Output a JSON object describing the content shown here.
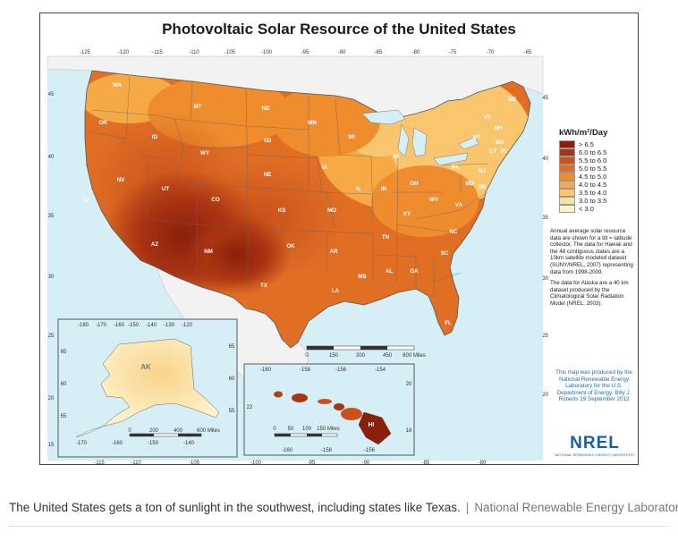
{
  "title": "Photovoltaic Solar Resource of the United States",
  "legend": {
    "title": "kWh/m²/Day",
    "items": [
      {
        "label": "> 6.5",
        "color": "#8a1f0c"
      },
      {
        "label": "6.0 to 6.5",
        "color": "#a93412"
      },
      {
        "label": "5.5 to 6.0",
        "color": "#c9511c"
      },
      {
        "label": "5.0 to 5.5",
        "color": "#e06f24"
      },
      {
        "label": "4.5 to 5.0",
        "color": "#ee8c2e"
      },
      {
        "label": "4.0 to 4.5",
        "color": "#f6aa45"
      },
      {
        "label": "3.5 to 4.0",
        "color": "#f9c66e"
      },
      {
        "label": "3.0 to 3.5",
        "color": "#fbe09e"
      },
      {
        "label": "< 3.0",
        "color": "#fdf2cc"
      }
    ]
  },
  "note1": "Annual average solar resource data are shown for a tilt = latitude collector. The data for Hawaii and the 48 contiguous states are a 10km satellite modeled dataset (SUNY/NREL, 2007) representing data from 1998-2009.",
  "note2": "The data for Alaska are a 40 km dataset produced by the Climatological Solar Radiation Model (NREL, 2003).",
  "credit": "This map was produced by the National Renewable Energy Laboratory for the U.S. Department of Energy. Billy J. Roberts 19 September 2012",
  "logo": "NREL",
  "logo_sub": "NATIONAL RENEWABLE ENERGY LABORATORY",
  "top_ticks": [
    "-125",
    "-120",
    "-115",
    "-110",
    "-105",
    "-100",
    "-95",
    "-90",
    "-85",
    "-80",
    "-75",
    "-70",
    "-65"
  ],
  "bottom_ticks": [
    "-115",
    "-110",
    "-105",
    "-100",
    "-95",
    "-90",
    "-85",
    "-80"
  ],
  "left_ticks": [
    "45",
    "40",
    "35",
    "30",
    "25",
    "20",
    "15"
  ],
  "right_ticks": [
    "45",
    "40",
    "35",
    "30",
    "25",
    "20"
  ],
  "states": [
    "WA",
    "OR",
    "CA",
    "NV",
    "ID",
    "MT",
    "WY",
    "UT",
    "AZ",
    "CO",
    "NM",
    "ND",
    "SD",
    "NE",
    "KS",
    "OK",
    "TX",
    "MN",
    "IA",
    "MO",
    "AR",
    "LA",
    "WI",
    "IL",
    "MI",
    "IN",
    "OH",
    "KY",
    "TN",
    "MS",
    "AL",
    "GA",
    "FL",
    "SC",
    "NC",
    "VA",
    "WV",
    "PA",
    "NY",
    "VT",
    "NH",
    "ME",
    "MA",
    "CT",
    "RI",
    "NJ",
    "DE",
    "MD"
  ],
  "scale_conus": {
    "ticks": [
      "0",
      "150",
      "300",
      "450",
      "600 Miles"
    ]
  },
  "alaska": {
    "label": "AK",
    "top_ticks": [
      "-180",
      "-170",
      "-160",
      "-150",
      "-140",
      "-130",
      "-120"
    ],
    "bottom_ticks": [
      "-170",
      "-160",
      "-150",
      "-140"
    ],
    "left_ticks": [
      "65",
      "60",
      "55"
    ],
    "right_ticks": [
      "65",
      "60",
      "55"
    ],
    "scale": [
      "0",
      "200",
      "400",
      "600 Miles"
    ]
  },
  "hawaii": {
    "label": "HI",
    "top_ticks": [
      "-160",
      "-158",
      "-156",
      "-154"
    ],
    "bottom_ticks": [
      "-160",
      "-158",
      "-156"
    ],
    "left_ticks": [
      "22"
    ],
    "right_ticks": [
      "20",
      "18"
    ],
    "scale": [
      "0",
      "50",
      "100",
      "150 Miles"
    ]
  },
  "caption": {
    "text": "The United States gets a ton of sunlight in the southwest, including states like Texas.",
    "separator": "|",
    "credit": "National Renewable Energy Laboratory"
  }
}
